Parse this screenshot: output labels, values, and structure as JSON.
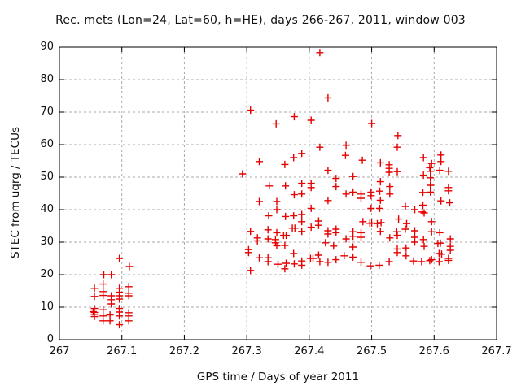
{
  "chart": {
    "title": "Rec. mets (Lon=24, Lat=60, h=HE), days 266-267, 2011, window 003",
    "xlabel": "GPS time / Days of year 2011",
    "ylabel": "STEC from uqrg / TECUs"
  },
  "colors": {
    "marker": "#e60000",
    "grid": "#a8a8a8",
    "border": "#000000",
    "background": "#ffffff",
    "text": "#111111"
  },
  "chart_data": {
    "type": "scatter",
    "title": "Rec. mets (Lon=24, Lat=60, h=HE), days 266-267, 2011, window 003",
    "xlabel": "GPS time / Days of year 2011",
    "ylabel": "STEC from uqrg / TECUs",
    "xlim": [
      267,
      267.7
    ],
    "ylim": [
      0,
      90
    ],
    "xticks": {
      "values": [
        267,
        267.1,
        267.2,
        267.3,
        267.4,
        267.5,
        267.6,
        267.7
      ],
      "labels": [
        "267",
        "267.1",
        "267.2",
        "267.3",
        "267.4",
        "267.5",
        "267.6",
        "267.7"
      ]
    },
    "yticks": {
      "values": [
        0,
        10,
        20,
        30,
        40,
        50,
        60,
        70,
        80,
        90
      ],
      "labels": [
        "0",
        "10",
        "20",
        "30",
        "40",
        "50",
        "60",
        "70",
        "80",
        "90"
      ]
    },
    "grid": true,
    "legend": false,
    "marker": "plus",
    "series": [
      {
        "name": "STEC",
        "points": [
          [
            267.056,
            15.8
          ],
          [
            267.056,
            13.3
          ],
          [
            267.056,
            9.6
          ],
          [
            267.054,
            8.6
          ],
          [
            267.056,
            8.4
          ],
          [
            267.056,
            7.8
          ],
          [
            267.056,
            7.1
          ],
          [
            267.071,
            20.0
          ],
          [
            267.07,
            17.1
          ],
          [
            267.07,
            14.8
          ],
          [
            267.07,
            13.6
          ],
          [
            267.07,
            9.2
          ],
          [
            267.07,
            7.3
          ],
          [
            267.07,
            5.8
          ],
          [
            267.083,
            20.0
          ],
          [
            267.083,
            13.5
          ],
          [
            267.083,
            12.3
          ],
          [
            267.083,
            11.0
          ],
          [
            267.081,
            7.6
          ],
          [
            267.081,
            5.8
          ],
          [
            267.096,
            25.0
          ],
          [
            267.096,
            15.8
          ],
          [
            267.096,
            14.6
          ],
          [
            267.096,
            13.5
          ],
          [
            267.096,
            12.5
          ],
          [
            267.096,
            9.6
          ],
          [
            267.096,
            8.5
          ],
          [
            267.096,
            7.3
          ],
          [
            267.096,
            4.6
          ],
          [
            267.112,
            22.5
          ],
          [
            267.111,
            16.3
          ],
          [
            267.111,
            14.3
          ],
          [
            267.111,
            13.5
          ],
          [
            267.111,
            8.3
          ],
          [
            267.111,
            7.3
          ],
          [
            267.111,
            5.8
          ],
          [
            267.417,
            88.3
          ],
          [
            267.43,
            74.4
          ],
          [
            267.306,
            70.6
          ],
          [
            267.376,
            68.6
          ],
          [
            267.347,
            66.4
          ],
          [
            267.403,
            67.5
          ],
          [
            267.417,
            59.2
          ],
          [
            267.459,
            59.8
          ],
          [
            267.458,
            56.7
          ],
          [
            267.32,
            54.8
          ],
          [
            267.361,
            53.9
          ],
          [
            267.375,
            56.0
          ],
          [
            267.388,
            57.3
          ],
          [
            267.5,
            66.5
          ],
          [
            267.542,
            62.8
          ],
          [
            267.541,
            59.2
          ],
          [
            267.485,
            55.2
          ],
          [
            267.514,
            54.4
          ],
          [
            267.528,
            53.8
          ],
          [
            267.583,
            56.0
          ],
          [
            267.596,
            54.2
          ],
          [
            267.611,
            56.8
          ],
          [
            267.611,
            54.8
          ],
          [
            267.293,
            51.0
          ],
          [
            267.43,
            52.1
          ],
          [
            267.336,
            47.3
          ],
          [
            267.362,
            47.3
          ],
          [
            267.388,
            48.1
          ],
          [
            267.403,
            48.1
          ],
          [
            267.403,
            46.8
          ],
          [
            267.376,
            44.6
          ],
          [
            267.388,
            44.8
          ],
          [
            267.443,
            49.6
          ],
          [
            267.443,
            47.1
          ],
          [
            267.459,
            44.8
          ],
          [
            267.32,
            42.5
          ],
          [
            267.348,
            42.5
          ],
          [
            267.43,
            42.8
          ],
          [
            267.335,
            38.1
          ],
          [
            267.348,
            40.0
          ],
          [
            267.362,
            37.9
          ],
          [
            267.375,
            38.1
          ],
          [
            267.388,
            38.5
          ],
          [
            267.403,
            40.4
          ],
          [
            267.388,
            36.3
          ],
          [
            267.403,
            34.6
          ],
          [
            267.373,
            34.3
          ],
          [
            267.377,
            34.3
          ],
          [
            267.388,
            33.3
          ],
          [
            267.415,
            36.5
          ],
          [
            267.415,
            35.2
          ],
          [
            267.306,
            33.3
          ],
          [
            267.334,
            33.8
          ],
          [
            267.348,
            32.9
          ],
          [
            267.359,
            32.1
          ],
          [
            267.363,
            32.1
          ],
          [
            267.317,
            31.3
          ],
          [
            267.317,
            30.4
          ],
          [
            267.334,
            31.0
          ],
          [
            267.346,
            30.8
          ],
          [
            267.346,
            29.8
          ],
          [
            267.348,
            28.9
          ],
          [
            267.361,
            29.0
          ],
          [
            267.303,
            27.7
          ],
          [
            267.303,
            26.8
          ],
          [
            267.43,
            33.5
          ],
          [
            267.43,
            32.5
          ],
          [
            267.443,
            34.0
          ],
          [
            267.443,
            32.9
          ],
          [
            267.459,
            31.0
          ],
          [
            267.426,
            29.8
          ],
          [
            267.439,
            28.8
          ],
          [
            267.375,
            26.5
          ],
          [
            267.32,
            25.2
          ],
          [
            267.334,
            25.2
          ],
          [
            267.334,
            24.0
          ],
          [
            267.35,
            23.2
          ],
          [
            267.363,
            23.5
          ],
          [
            267.376,
            23.3
          ],
          [
            267.388,
            24.2
          ],
          [
            267.388,
            22.9
          ],
          [
            267.402,
            25.0
          ],
          [
            267.406,
            25.0
          ],
          [
            267.415,
            26.0
          ],
          [
            267.417,
            24.0
          ],
          [
            267.43,
            23.8
          ],
          [
            267.306,
            21.3
          ],
          [
            267.361,
            21.8
          ],
          [
            267.443,
            24.6
          ],
          [
            267.456,
            25.8
          ],
          [
            267.528,
            52.7
          ],
          [
            267.528,
            51.5
          ],
          [
            267.541,
            51.7
          ],
          [
            267.47,
            50.2
          ],
          [
            267.583,
            50.6
          ],
          [
            267.593,
            52.9
          ],
          [
            267.594,
            51.8
          ],
          [
            267.609,
            52.1
          ],
          [
            267.623,
            51.8
          ],
          [
            267.514,
            48.6
          ],
          [
            267.529,
            47.1
          ],
          [
            267.47,
            45.4
          ],
          [
            267.483,
            44.8
          ],
          [
            267.483,
            43.5
          ],
          [
            267.499,
            45.4
          ],
          [
            267.499,
            44.3
          ],
          [
            267.513,
            45.7
          ],
          [
            267.529,
            44.8
          ],
          [
            267.514,
            42.9
          ],
          [
            267.582,
            45.3
          ],
          [
            267.594,
            49.8
          ],
          [
            267.594,
            47.5
          ],
          [
            267.594,
            45.4
          ],
          [
            267.623,
            46.8
          ],
          [
            267.623,
            45.8
          ],
          [
            267.611,
            42.7
          ],
          [
            267.625,
            42.1
          ],
          [
            267.499,
            40.4
          ],
          [
            267.513,
            40.4
          ],
          [
            267.554,
            41.0
          ],
          [
            267.569,
            40.0
          ],
          [
            267.582,
            41.4
          ],
          [
            267.581,
            39.3
          ],
          [
            267.584,
            39.0
          ],
          [
            267.486,
            36.3
          ],
          [
            267.497,
            35.8
          ],
          [
            267.5,
            35.9
          ],
          [
            267.509,
            35.7
          ],
          [
            267.515,
            36.0
          ],
          [
            267.543,
            37.1
          ],
          [
            267.556,
            35.7
          ],
          [
            267.514,
            33.3
          ],
          [
            267.47,
            33.2
          ],
          [
            267.47,
            31.8
          ],
          [
            267.483,
            32.9
          ],
          [
            267.483,
            31.5
          ],
          [
            267.54,
            33.2
          ],
          [
            267.541,
            32.1
          ],
          [
            267.554,
            34.0
          ],
          [
            267.569,
            33.5
          ],
          [
            267.529,
            31.3
          ],
          [
            267.569,
            31.5
          ],
          [
            267.596,
            36.3
          ],
          [
            267.596,
            33.2
          ],
          [
            267.609,
            32.9
          ],
          [
            267.583,
            30.8
          ],
          [
            267.606,
            29.6
          ],
          [
            267.61,
            29.7
          ],
          [
            267.626,
            31.0
          ],
          [
            267.626,
            28.7
          ],
          [
            267.626,
            27.5
          ],
          [
            267.47,
            28.5
          ],
          [
            267.584,
            28.7
          ],
          [
            267.569,
            30.0
          ],
          [
            267.541,
            27.9
          ],
          [
            267.541,
            26.8
          ],
          [
            267.555,
            28.2
          ],
          [
            267.555,
            25.8
          ],
          [
            267.47,
            25.4
          ],
          [
            267.483,
            23.8
          ],
          [
            267.498,
            22.7
          ],
          [
            267.512,
            22.9
          ],
          [
            267.528,
            24.0
          ],
          [
            267.567,
            24.2
          ],
          [
            267.58,
            24.0
          ],
          [
            267.593,
            24.3
          ],
          [
            267.608,
            26.5
          ],
          [
            267.612,
            26.3
          ],
          [
            267.608,
            24.0
          ],
          [
            267.596,
            24.6
          ],
          [
            267.623,
            25.0
          ],
          [
            267.623,
            24.4
          ]
        ]
      }
    ]
  }
}
